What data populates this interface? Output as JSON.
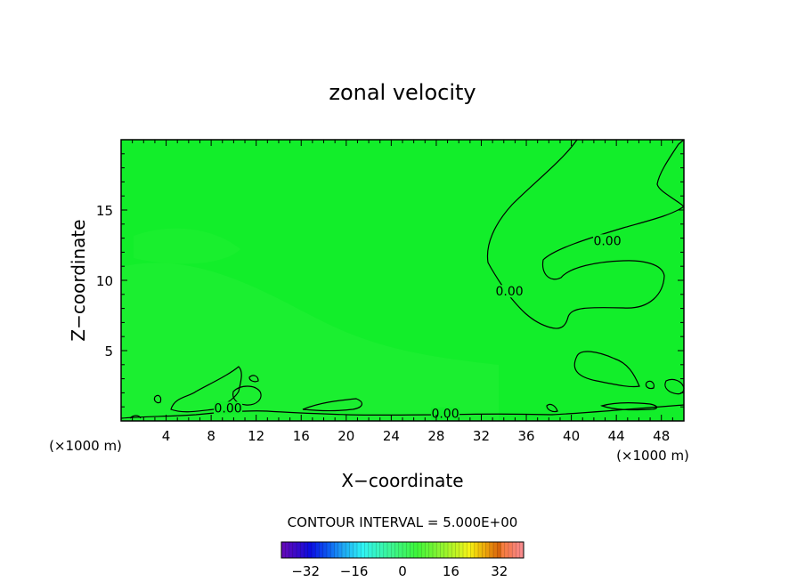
{
  "chart_data": {
    "type": "heatmap",
    "title": "zonal velocity",
    "xlabel": "X−coordinate",
    "ylabel": "Z−coordinate",
    "x_unit_left": "(×1000 m)",
    "x_unit_right": "(×1000 m)",
    "xlim": [
      0,
      50
    ],
    "ylim": [
      0,
      20
    ],
    "x_ticks": [
      4,
      8,
      12,
      16,
      20,
      24,
      28,
      32,
      36,
      40,
      44,
      48
    ],
    "y_ticks": [
      5,
      10,
      15
    ],
    "field_value_approx": 0,
    "contour_interval_text": "CONTOUR INTERVAL = 5.000E+00",
    "contour_labels": [
      {
        "text": "0.00",
        "x": 43.2,
        "y": 12.7
      },
      {
        "text": "0.00",
        "x": 34.5,
        "y": 9.1
      },
      {
        "text": "0.00",
        "x": 9.5,
        "y": 0.8
      },
      {
        "text": "0.00",
        "x": 28.8,
        "y": 0.4
      }
    ],
    "colorbar": {
      "min": -40,
      "max": 40,
      "tick_labels": [
        "−32",
        "−16",
        "0",
        "16",
        "32"
      ],
      "tick_values": [
        -32,
        -16,
        0,
        16,
        32
      ]
    },
    "colors": {
      "field": "#12ee2a",
      "field_dark": "#10e828",
      "field_light": "#2ef23c",
      "contour": "#000000"
    }
  }
}
